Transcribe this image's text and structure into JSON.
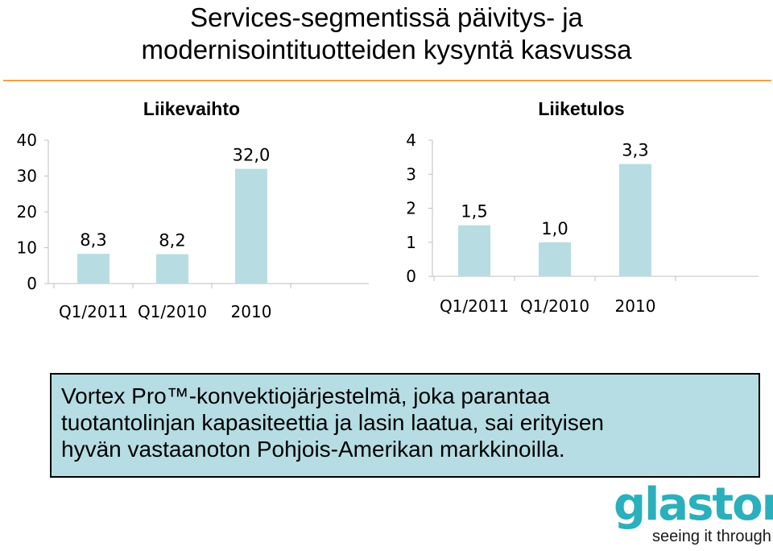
{
  "page": {
    "title_line1": "Services-segmentissä päivitys- ja",
    "title_line2": "modernisointituotteiden kysyntä kasvussa",
    "callout_line1": "Vortex Pro™-konvektiojärjestelmä, joka parantaa",
    "callout_line2": "tuotantolinjan kapasiteettia ja lasin laatua, sai erityisen",
    "callout_line3": "hyvän vastaanoton Pohjois-Amerikan markkinoilla.",
    "logo_word": "glaston",
    "logo_tagline": "seeing it through"
  },
  "colors": {
    "bar": "#b7dde3",
    "divider": "#f0a050",
    "logo": "#2ab0bd",
    "callout_bg": "#b5dde3"
  },
  "chart_data": [
    {
      "type": "bar",
      "title": "Liikevaihto",
      "categories": [
        "Q1/2011",
        "Q1/2010",
        "2010"
      ],
      "values": [
        8.3,
        8.2,
        32.0
      ],
      "value_labels": [
        "8,3",
        "8,2",
        "32,0"
      ],
      "yticks": [
        "0",
        "10",
        "20",
        "30",
        "40"
      ],
      "ylim": [
        0,
        40
      ],
      "grid": false
    },
    {
      "type": "bar",
      "title": "Liiketulos",
      "categories": [
        "Q1/2011",
        "Q1/2010",
        "2010"
      ],
      "values": [
        1.5,
        1.0,
        3.3
      ],
      "value_labels": [
        "1,5",
        "1,0",
        "3,3"
      ],
      "yticks": [
        "0",
        "1",
        "2",
        "3",
        "4"
      ],
      "ylim": [
        0,
        4
      ],
      "grid": false
    }
  ]
}
